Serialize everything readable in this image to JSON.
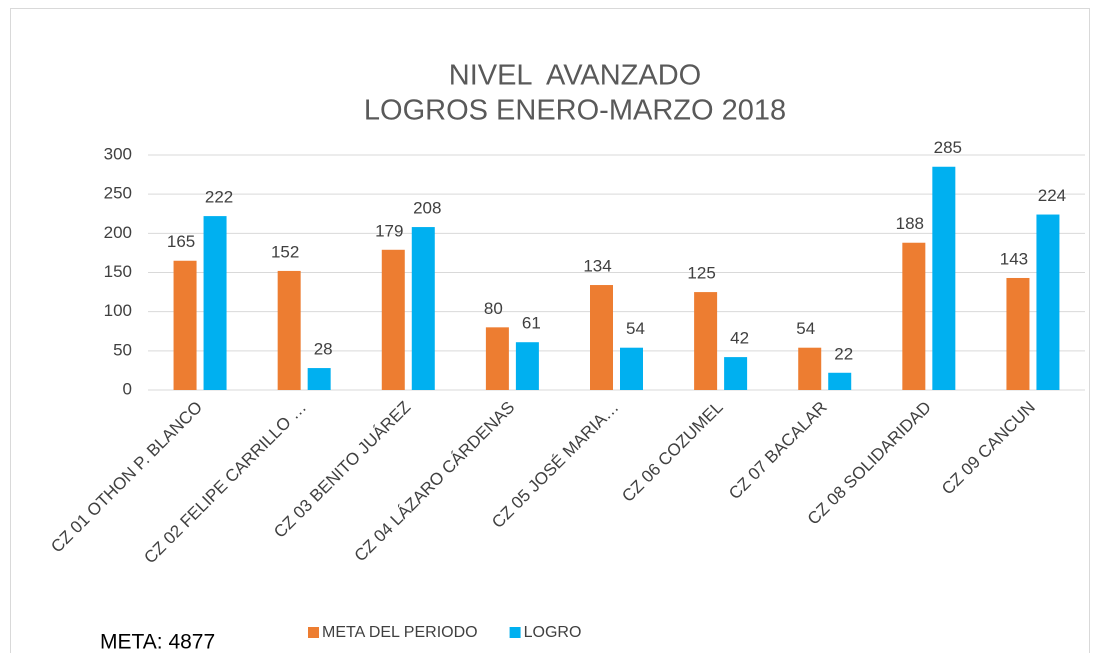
{
  "chart_data": {
    "type": "bar",
    "title": [
      "NIVEL  AVANZADO",
      "LOGROS ENERO-MARZO 2018"
    ],
    "categories": [
      "CZ 01 OTHON P. BLANCO",
      "CZ 02 FELIPE CARRILLO …",
      "CZ 03 BENITO JUÁREZ",
      "CZ 04 LÁZARO CÁRDENAS",
      "CZ 05 JOSÉ MARIA…",
      "CZ 06 COZUMEL",
      "CZ 07 BACALAR",
      "CZ 08 SOLIDARIDAD",
      "CZ 09 CANCUN"
    ],
    "series": [
      {
        "name": "META DEL PERIODO",
        "color": "#ed7d31",
        "values": [
          165,
          152,
          179,
          80,
          134,
          125,
          54,
          188,
          143
        ]
      },
      {
        "name": "LOGRO",
        "color": "#00b0f0",
        "values": [
          222,
          28,
          208,
          61,
          54,
          42,
          22,
          285,
          224
        ]
      }
    ],
    "ylim": [
      0,
      300
    ],
    "yticks": [
      0,
      50,
      100,
      150,
      200,
      250,
      300
    ],
    "grid": true,
    "legend": "bottom",
    "annotations": [
      "META: 4877"
    ]
  }
}
